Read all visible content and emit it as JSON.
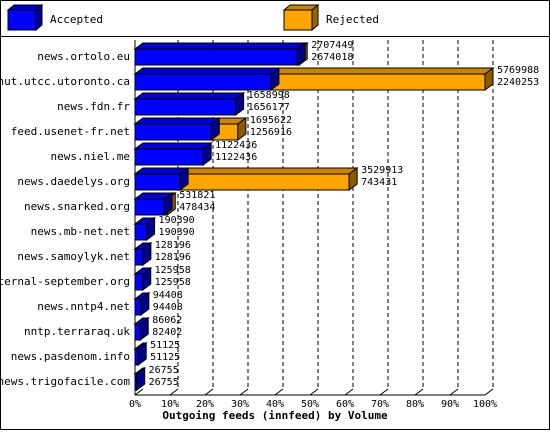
{
  "chart_data": {
    "type": "bar",
    "orientation": "horizontal",
    "overlay": true,
    "xlabel": "Outgoing feeds (innfeed) by Volume",
    "categories": [
      "news.ortolo.eu",
      "nut.utcc.utoronto.ca",
      "news.fdn.fr",
      "feed.usenet-fr.net",
      "news.niel.me",
      "news.daedelys.org",
      "news.snarked.org",
      "news.mb-net.net",
      "news.samoylyk.net",
      "eternal-september.org",
      "news.nntp4.net",
      "nntp.terraraq.uk",
      "news.pasdenom.info",
      "news.trigofacile.com"
    ],
    "series": [
      {
        "name": "Rejected",
        "color": "#ffa500",
        "values": [
          2707449,
          5769988,
          1658998,
          1695622,
          1122436,
          3529913,
          531821,
          190390,
          128196,
          125958,
          94408,
          86062,
          51125,
          26755
        ]
      },
      {
        "name": "Accepted",
        "color": "#0000ff",
        "values": [
          2674018,
          2240253,
          1656177,
          1256916,
          1122436,
          743431,
          478434,
          190390,
          128196,
          125958,
          94408,
          82402,
          51125,
          26755
        ]
      }
    ],
    "legend_order": [
      "Accepted",
      "Rejected"
    ],
    "xlim": [
      0,
      5769988
    ],
    "xticks": [
      {
        "value": 0,
        "label": "0%"
      },
      {
        "value": 576998.8,
        "label": "10%"
      },
      {
        "value": 1153997.6,
        "label": "20%"
      },
      {
        "value": 1730996.4,
        "label": "30%"
      },
      {
        "value": 2307995.2,
        "label": "40%"
      },
      {
        "value": 2884994,
        "label": "50%"
      },
      {
        "value": 3461992.8,
        "label": "60%"
      },
      {
        "value": 4038991.6,
        "label": "70%"
      },
      {
        "value": 4615990.4,
        "label": "80%"
      },
      {
        "value": 5192989.2,
        "label": "90%"
      },
      {
        "value": 5769988,
        "label": "100%"
      }
    ],
    "grid": true
  }
}
